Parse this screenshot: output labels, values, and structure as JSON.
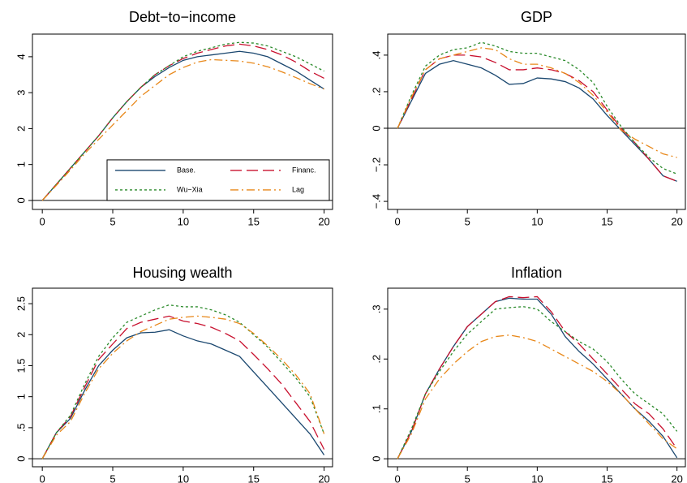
{
  "chart_data": [
    {
      "type": "line",
      "title": "Debt−to−income",
      "legend": "lower right",
      "x": [
        0,
        1,
        2,
        3,
        4,
        5,
        6,
        7,
        8,
        9,
        10,
        11,
        12,
        13,
        14,
        15,
        16,
        17,
        18,
        19,
        20
      ],
      "xlim": [
        -0.7,
        20.6
      ],
      "xticks": [
        0,
        5,
        10,
        15,
        20
      ],
      "ylim": [
        -0.25,
        4.63
      ],
      "yticks": [
        0,
        1,
        2,
        3,
        4
      ],
      "series": [
        {
          "name": "Base.",
          "color": "#1a476f",
          "values": [
            0,
            0.45,
            0.9,
            1.35,
            1.8,
            2.3,
            2.75,
            3.15,
            3.45,
            3.7,
            3.9,
            4.0,
            4.05,
            4.1,
            4.15,
            4.1,
            4.0,
            3.8,
            3.6,
            3.35,
            3.1
          ]
        },
        {
          "name": "Financ.",
          "color": "#c8102e",
          "values": [
            0,
            0.45,
            0.9,
            1.35,
            1.8,
            2.3,
            2.75,
            3.15,
            3.5,
            3.75,
            3.95,
            4.1,
            4.2,
            4.3,
            4.35,
            4.3,
            4.2,
            4.05,
            3.85,
            3.6,
            3.4
          ]
        },
        {
          "name": "Wu−Xia",
          "color": "#2a8a2a",
          "values": [
            0,
            0.45,
            0.9,
            1.35,
            1.8,
            2.3,
            2.75,
            3.15,
            3.5,
            3.75,
            4.0,
            4.15,
            4.25,
            4.35,
            4.4,
            4.38,
            4.3,
            4.15,
            4.0,
            3.8,
            3.6
          ]
        },
        {
          "name": "Lag",
          "color": "#e8881a",
          "values": [
            0,
            0.42,
            0.85,
            1.3,
            1.7,
            2.1,
            2.5,
            2.9,
            3.2,
            3.5,
            3.7,
            3.85,
            3.92,
            3.9,
            3.88,
            3.82,
            3.72,
            3.58,
            3.42,
            3.25,
            3.1
          ]
        }
      ]
    },
    {
      "type": "line",
      "title": "GDP",
      "x": [
        0,
        1,
        2,
        3,
        4,
        5,
        6,
        7,
        8,
        9,
        10,
        11,
        12,
        13,
        14,
        15,
        16,
        17,
        18,
        19,
        20
      ],
      "xlim": [
        -0.7,
        20.6
      ],
      "xticks": [
        0,
        5,
        10,
        15,
        20
      ],
      "ylim": [
        -0.444,
        0.515
      ],
      "yticks": [
        {
          "value": -0.4,
          "label": "−.4"
        },
        {
          "value": -0.2,
          "label": "−.2"
        },
        0,
        {
          "value": 0.2,
          "label": ".2"
        },
        {
          "value": 0.4,
          "label": ".4"
        }
      ],
      "series": [
        {
          "name": "Base.",
          "color": "#1a476f",
          "values": [
            0,
            0.15,
            0.3,
            0.35,
            0.37,
            0.35,
            0.33,
            0.29,
            0.24,
            0.245,
            0.275,
            0.27,
            0.255,
            0.22,
            0.16,
            0.07,
            -0.01,
            -0.09,
            -0.17,
            -0.26,
            -0.29
          ]
        },
        {
          "name": "Financ.",
          "color": "#c8102e",
          "values": [
            0,
            0.16,
            0.32,
            0.38,
            0.4,
            0.4,
            0.39,
            0.36,
            0.32,
            0.32,
            0.33,
            0.32,
            0.3,
            0.26,
            0.2,
            0.1,
            0.0,
            -0.08,
            -0.17,
            -0.26,
            -0.29
          ]
        },
        {
          "name": "Wu−Xia",
          "color": "#2a8a2a",
          "values": [
            0,
            0.18,
            0.34,
            0.4,
            0.43,
            0.44,
            0.47,
            0.45,
            0.42,
            0.41,
            0.41,
            0.39,
            0.37,
            0.32,
            0.25,
            0.12,
            0.01,
            -0.08,
            -0.16,
            -0.22,
            -0.25
          ]
        },
        {
          "name": "Lag",
          "color": "#e8881a",
          "values": [
            0,
            0.17,
            0.32,
            0.38,
            0.4,
            0.42,
            0.44,
            0.43,
            0.38,
            0.35,
            0.35,
            0.33,
            0.3,
            0.25,
            0.18,
            0.09,
            -0.01,
            -0.06,
            -0.1,
            -0.14,
            -0.16
          ]
        }
      ]
    },
    {
      "type": "line",
      "title": "Housing wealth",
      "x": [
        0,
        1,
        2,
        3,
        4,
        5,
        6,
        7,
        8,
        9,
        10,
        11,
        12,
        13,
        14,
        15,
        16,
        17,
        18,
        19,
        20
      ],
      "xlim": [
        -0.7,
        20.6
      ],
      "xticks": [
        0,
        5,
        10,
        15,
        20
      ],
      "ylim": [
        -0.13,
        2.75
      ],
      "yticks": [
        0,
        {
          "value": 0.5,
          "label": ".5"
        },
        1,
        1.5,
        2,
        2.5
      ],
      "series": [
        {
          "name": "Base.",
          "color": "#1a476f",
          "values": [
            0,
            0.42,
            0.65,
            1.1,
            1.5,
            1.75,
            1.95,
            2.03,
            2.04,
            2.08,
            1.98,
            1.9,
            1.85,
            1.75,
            1.65,
            1.4,
            1.15,
            0.9,
            0.65,
            0.4,
            0.06
          ]
        },
        {
          "name": "Financ.",
          "color": "#c8102e",
          "values": [
            0,
            0.42,
            0.68,
            1.15,
            1.6,
            1.85,
            2.1,
            2.2,
            2.25,
            2.3,
            2.22,
            2.18,
            2.12,
            2.02,
            1.9,
            1.68,
            1.45,
            1.2,
            0.9,
            0.6,
            0.15
          ]
        },
        {
          "name": "Wu−Xia",
          "color": "#2a8a2a",
          "values": [
            0,
            0.42,
            0.7,
            1.2,
            1.65,
            1.95,
            2.2,
            2.3,
            2.4,
            2.48,
            2.45,
            2.45,
            2.4,
            2.32,
            2.2,
            2.0,
            1.8,
            1.55,
            1.3,
            1.0,
            0.4
          ]
        },
        {
          "name": "Lag",
          "color": "#e8881a",
          "values": [
            0,
            0.38,
            0.6,
            1.05,
            1.45,
            1.7,
            1.9,
            2.05,
            2.15,
            2.25,
            2.28,
            2.3,
            2.28,
            2.25,
            2.18,
            2.02,
            1.82,
            1.6,
            1.35,
            1.05,
            0.4
          ]
        }
      ]
    },
    {
      "type": "line",
      "title": "Inflation",
      "x": [
        0,
        1,
        2,
        3,
        4,
        5,
        6,
        7,
        8,
        9,
        10,
        11,
        12,
        13,
        14,
        15,
        16,
        17,
        18,
        19,
        20
      ],
      "xlim": [
        -0.7,
        20.6
      ],
      "xticks": [
        0,
        5,
        10,
        15,
        20
      ],
      "ylim": [
        -0.016,
        0.342
      ],
      "yticks": [
        0,
        {
          "value": 0.1,
          "label": ".1"
        },
        {
          "value": 0.2,
          "label": ".2"
        },
        {
          "value": 0.3,
          "label": ".3"
        }
      ],
      "series": [
        {
          "name": "Base.",
          "color": "#1a476f",
          "values": [
            0,
            0.055,
            0.13,
            0.18,
            0.225,
            0.265,
            0.29,
            0.315,
            0.322,
            0.32,
            0.32,
            0.29,
            0.245,
            0.215,
            0.19,
            0.16,
            0.13,
            0.1,
            0.075,
            0.045,
            0.002
          ]
        },
        {
          "name": "Financ.",
          "color": "#c8102e",
          "values": [
            0,
            0.055,
            0.13,
            0.18,
            0.225,
            0.265,
            0.29,
            0.315,
            0.325,
            0.323,
            0.325,
            0.295,
            0.255,
            0.23,
            0.2,
            0.17,
            0.14,
            0.11,
            0.09,
            0.06,
            0.02
          ]
        },
        {
          "name": "Wu−Xia",
          "color": "#2a8a2a",
          "values": [
            0,
            0.06,
            0.13,
            0.175,
            0.215,
            0.25,
            0.275,
            0.3,
            0.303,
            0.305,
            0.3,
            0.275,
            0.255,
            0.235,
            0.22,
            0.195,
            0.16,
            0.13,
            0.11,
            0.09,
            0.055
          ]
        },
        {
          "name": "Lag",
          "color": "#e8881a",
          "values": [
            0,
            0.05,
            0.12,
            0.16,
            0.19,
            0.215,
            0.235,
            0.245,
            0.248,
            0.243,
            0.235,
            0.22,
            0.205,
            0.19,
            0.175,
            0.155,
            0.13,
            0.1,
            0.07,
            0.04,
            0.02
          ]
        }
      ]
    }
  ]
}
